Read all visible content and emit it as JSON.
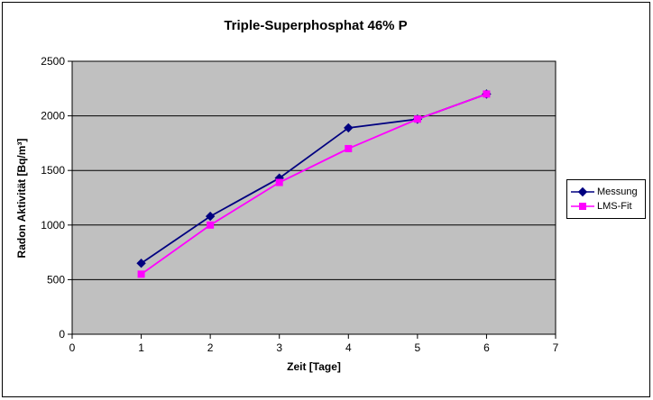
{
  "chart_data": {
    "type": "line",
    "title": "Triple-Superphosphat 46% P",
    "xlabel": "Zeit [Tage]",
    "ylabel": "Radon Aktivität [Bq/m³]",
    "x": [
      1,
      2,
      3,
      4,
      5,
      6
    ],
    "series": [
      {
        "name": "Messung",
        "color": "#000080",
        "marker": "diamond",
        "values": [
          650,
          1080,
          1430,
          1890,
          1970,
          2200
        ]
      },
      {
        "name": "LMS-Fit",
        "color": "#FF00FF",
        "marker": "square",
        "values": [
          550,
          1000,
          1390,
          1700,
          1970,
          2200
        ]
      }
    ],
    "xlim": [
      0,
      7
    ],
    "ylim": [
      0,
      2500
    ],
    "x_ticks": [
      0,
      1,
      2,
      3,
      4,
      5,
      6,
      7
    ],
    "y_ticks": [
      0,
      500,
      1000,
      1500,
      2000,
      2500
    ],
    "grid": "horizontal",
    "legend_position": "right",
    "plot_bg": "#C0C0C0",
    "colors": {
      "grid": "#000000",
      "axis": "#000000",
      "background": "#FFFFFF",
      "frame_border": "#000000"
    }
  }
}
